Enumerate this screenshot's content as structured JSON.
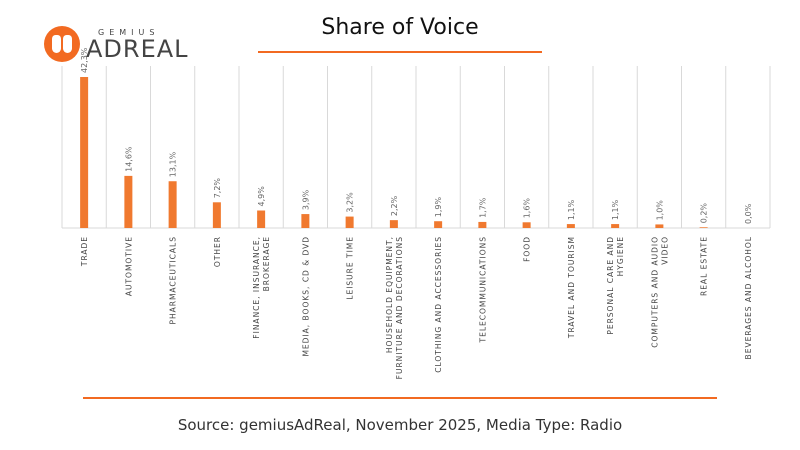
{
  "logo": {
    "small": "GEMIUS",
    "big": "ADREAL"
  },
  "title": "Share of Voice",
  "source": "Source: gemiusAdReal, November 2025, Media Type: Radio",
  "colors": {
    "bar": "#f0792f",
    "accent": "#f26a21",
    "grid": "#d9d9d9"
  },
  "chart_data": {
    "type": "bar",
    "title": "Share of Voice",
    "categories": [
      "TRADE",
      "AUTOMOTIVE",
      "PHARMACEUTICALS",
      "OTHER",
      "FINANCE, INSURANCE, BROKERAGE",
      "MEDIA, BOOKS, CD & DVD",
      "LEISURE TIME",
      "HOUSEHOLD EQUIPMENT, FURNITURE AND DECORATIONS",
      "CLOTHING AND ACCESSORIES",
      "TELECOMMUNICATIONS",
      "FOOD",
      "TRAVEL AND TOURISM",
      "PERSONAL CARE AND HYGIENE",
      "COMPUTERS AND AUDIO VIDEO",
      "REAL ESTATE",
      "BEVERAGES AND ALCOHOL"
    ],
    "values": [
      42.3,
      14.6,
      13.1,
      7.2,
      4.9,
      3.9,
      3.2,
      2.2,
      1.9,
      1.7,
      1.6,
      1.1,
      1.1,
      1.0,
      0.2,
      0.0
    ],
    "labels": [
      "42,3%",
      "14,6%",
      "13,1%",
      "7,2%",
      "4,9%",
      "3,9%",
      "3,2%",
      "2,2%",
      "1,9%",
      "1,7%",
      "1,6%",
      "1,1%",
      "1,1%",
      "1,0%",
      "0,2%",
      "0,0%"
    ],
    "ylim": [
      0,
      42.3
    ],
    "grid": "vertical"
  }
}
